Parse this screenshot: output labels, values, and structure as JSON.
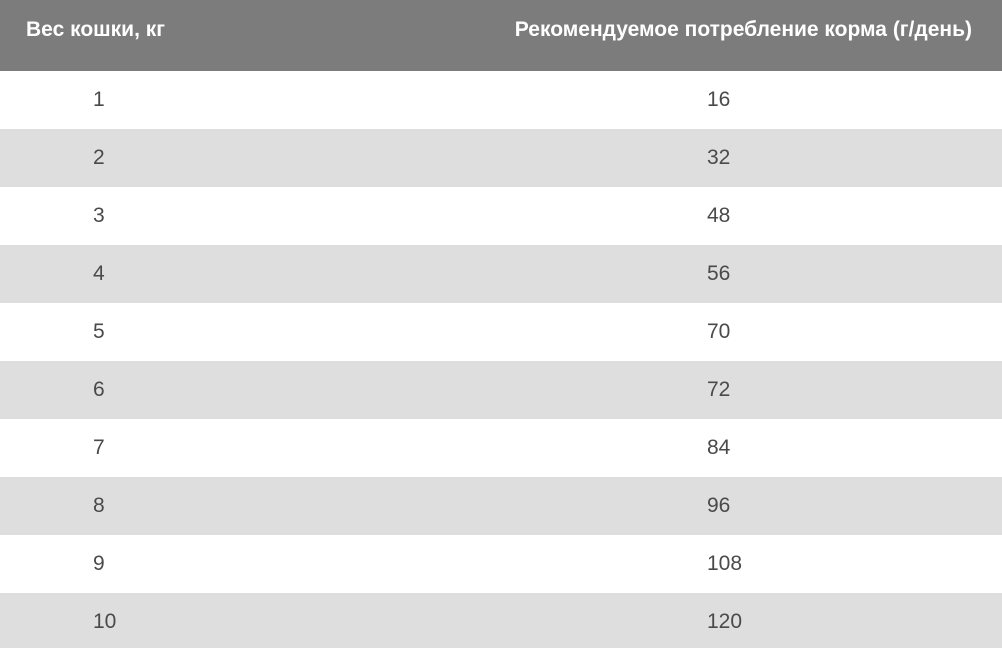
{
  "table": {
    "headers": {
      "weight": "Вес кошки, кг",
      "food": "Рекомендуемое потребление корма (г/день)"
    },
    "rows": [
      {
        "weight": "1",
        "food": "16"
      },
      {
        "weight": "2",
        "food": "32"
      },
      {
        "weight": "3",
        "food": "48"
      },
      {
        "weight": "4",
        "food": "56"
      },
      {
        "weight": "5",
        "food": "70"
      },
      {
        "weight": "6",
        "food": "72"
      },
      {
        "weight": "7",
        "food": "84"
      },
      {
        "weight": "8",
        "food": "96"
      },
      {
        "weight": "9",
        "food": "108"
      },
      {
        "weight": "10",
        "food": "120"
      }
    ]
  },
  "colors": {
    "header_background": "#7c7c7c",
    "header_text": "#ffffff",
    "row_alt_background": "#dedede",
    "row_background": "#ffffff",
    "cell_text": "#4a4a4a"
  }
}
